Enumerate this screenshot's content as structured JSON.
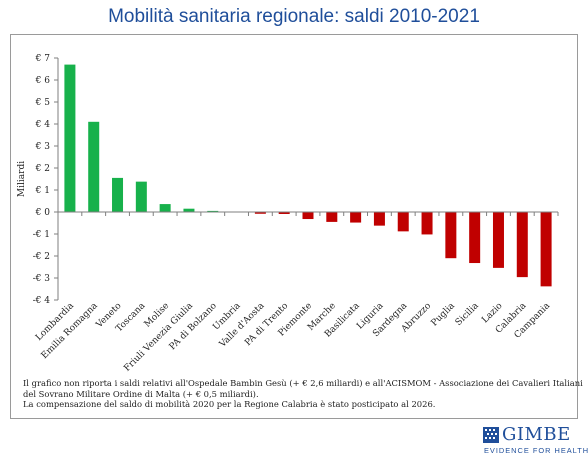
{
  "title": "Mobilità sanitaria regionale: saldi 2010-2021",
  "chart_data": {
    "type": "bar",
    "title": "Mobilità sanitaria regionale: saldi 2010-2021",
    "xlabel": "",
    "ylabel": "Miliardi",
    "ylim": [
      -4,
      7
    ],
    "yticks": [
      7,
      6,
      5,
      4,
      3,
      2,
      1,
      0,
      -1,
      -2,
      -3,
      -4
    ],
    "ytick_labels": [
      "€ 7",
      "€ 6",
      "€ 5",
      "€ 4",
      "€ 3",
      "€ 2",
      "€ 1",
      "€ 0",
      "-€ 1",
      "-€ 2",
      "-€ 3",
      "-€ 4"
    ],
    "grid": false,
    "positive_color": "#17b14b",
    "negative_color": "#c00000",
    "categories": [
      "Lombardia",
      "Emilia Romagna",
      "Veneto",
      "Toscana",
      "Molise",
      "Friuli Venezia Giulia",
      "PA di Bolzano",
      "Umbria",
      "Valle d'Aosta",
      "PA di Trento",
      "Piemonte",
      "Marche",
      "Basilicata",
      "Liguria",
      "Sardegna",
      "Abruzzo",
      "Puglia",
      "Sicilia",
      "Lazio",
      "Calabria",
      "Campania"
    ],
    "values": [
      6.7,
      4.1,
      1.55,
      1.38,
      0.36,
      0.15,
      0.05,
      0.01,
      -0.08,
      -0.09,
      -0.32,
      -0.45,
      -0.48,
      -0.62,
      -0.88,
      -1.02,
      -2.1,
      -2.32,
      -2.54,
      -2.96,
      -3.38
    ]
  },
  "notes": [
    "Il grafico non riporta i saldi relativi all'Ospedale Bambin Gesù (+ € 2,6 miliardi) e all'ACISMOM - Associazione dei Cavalieri Italiani",
    "del Sovrano Militare Ordine di Malta (+ € 0,5 miliardi).",
    "La compensazione del saldo di mobilità 2020 per la Regione Calabria è stato posticipato al 2026."
  ],
  "logo": {
    "name": "GIMBE",
    "tagline": "EVIDENCE FOR HEALTH",
    "color": "#1f4e9a"
  }
}
